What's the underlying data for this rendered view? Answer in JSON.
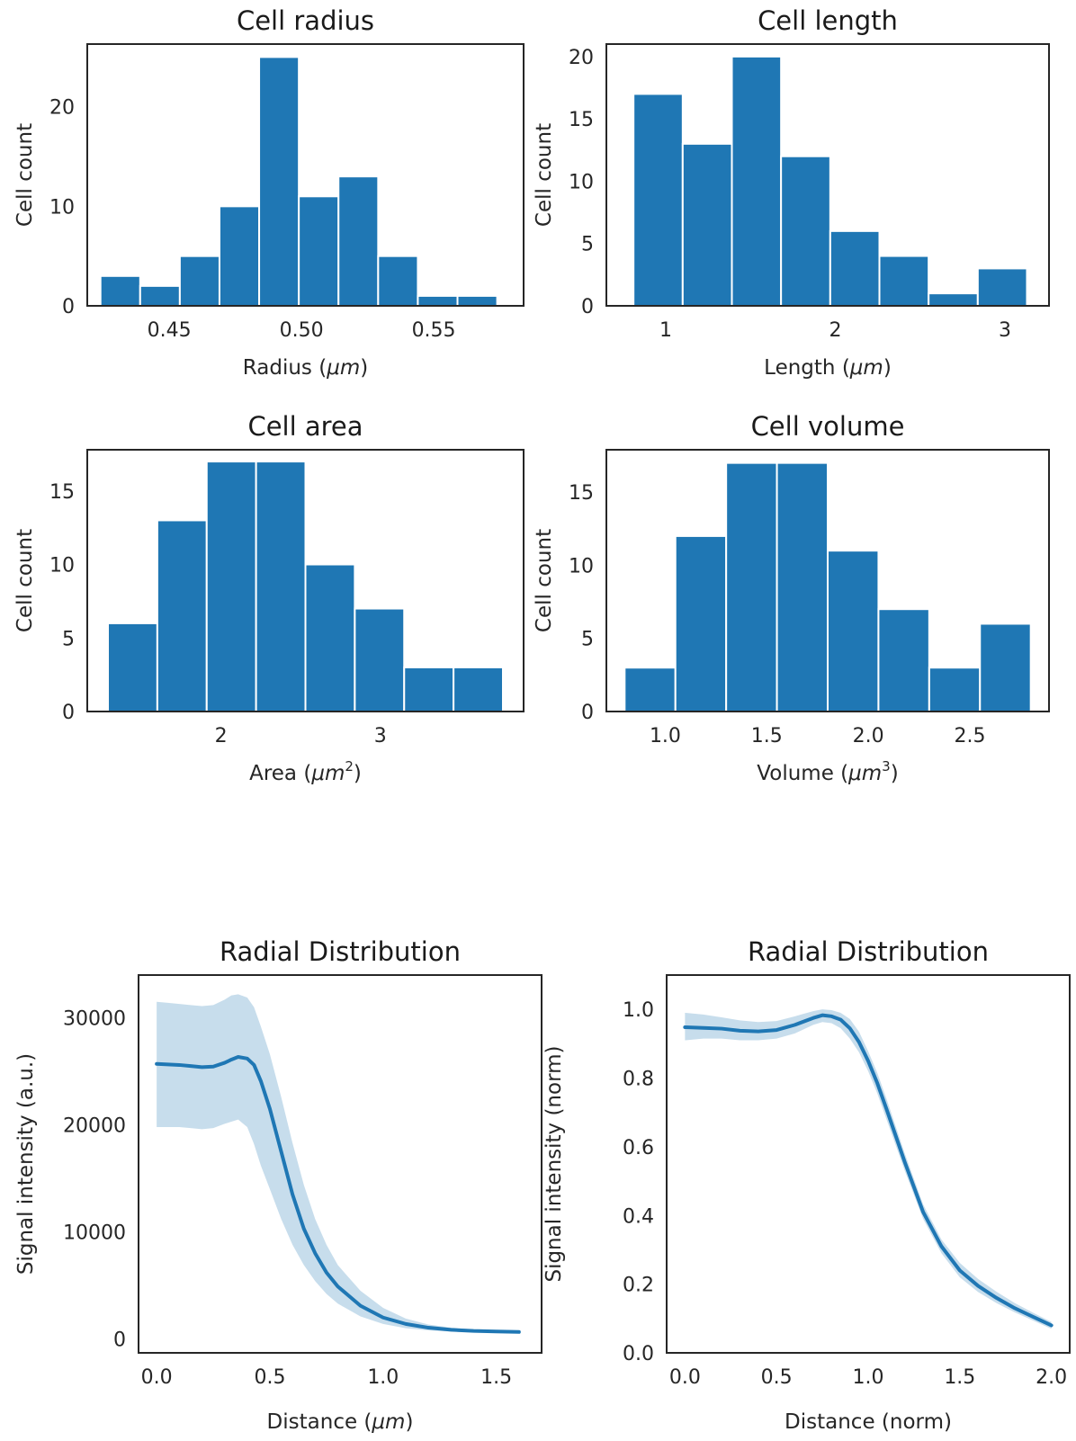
{
  "colors": {
    "bar": "#1f77b4",
    "line": "#1f77b4"
  },
  "chart_data": [
    {
      "type": "bar",
      "title": "Cell radius",
      "xlabel": "Radius (",
      "xunit": "μm",
      "xunit_sup": "",
      "xlabel_close": ")",
      "ylabel": "Cell count",
      "bins": [
        [
          0.424,
          0.439,
          3
        ],
        [
          0.439,
          0.454,
          2
        ],
        [
          0.454,
          0.469,
          5
        ],
        [
          0.469,
          0.484,
          10
        ],
        [
          0.484,
          0.499,
          25
        ],
        [
          0.499,
          0.514,
          11
        ],
        [
          0.514,
          0.529,
          13
        ],
        [
          0.529,
          0.544,
          5
        ],
        [
          0.544,
          0.559,
          1
        ],
        [
          0.559,
          0.574,
          1
        ]
      ],
      "xlim": [
        0.419,
        0.584
      ],
      "ylim": [
        0,
        26.3
      ],
      "xticks": [
        0.45,
        0.5,
        0.55
      ],
      "xtick_labels": [
        "0.45",
        "0.50",
        "0.55"
      ],
      "yticks": [
        0,
        10,
        20
      ],
      "ytick_labels": [
        "0",
        "10",
        "20"
      ]
    },
    {
      "type": "bar",
      "title": "Cell length",
      "xlabel": "Length (",
      "xunit": "μm",
      "xunit_sup": "",
      "xlabel_close": ")",
      "ylabel": "Cell count",
      "bins": [
        [
          0.81,
          1.1,
          17
        ],
        [
          1.1,
          1.39,
          13
        ],
        [
          1.39,
          1.68,
          20
        ],
        [
          1.68,
          1.97,
          12
        ],
        [
          1.97,
          2.26,
          6
        ],
        [
          2.26,
          2.55,
          4
        ],
        [
          2.55,
          2.84,
          1
        ],
        [
          2.84,
          3.13,
          3
        ]
      ],
      "xlim": [
        0.65,
        3.26
      ],
      "ylim": [
        0,
        21
      ],
      "xticks": [
        1,
        2,
        3
      ],
      "xtick_labels": [
        "1",
        "2",
        "3"
      ],
      "yticks": [
        0,
        5,
        10,
        15,
        20
      ],
      "ytick_labels": [
        "0",
        "5",
        "10",
        "15",
        "20"
      ]
    },
    {
      "type": "bar",
      "title": "Cell area",
      "xlabel": "Area (",
      "xunit": "μm",
      "xunit_sup": "2",
      "xlabel_close": ")",
      "ylabel": "Cell count",
      "bins": [
        [
          1.29,
          1.6,
          6
        ],
        [
          1.6,
          1.91,
          13
        ],
        [
          1.91,
          2.22,
          17
        ],
        [
          2.22,
          2.53,
          17
        ],
        [
          2.53,
          2.84,
          10
        ],
        [
          2.84,
          3.15,
          7
        ],
        [
          3.15,
          3.46,
          3
        ],
        [
          3.46,
          3.77,
          3
        ]
      ],
      "xlim": [
        1.16,
        3.9
      ],
      "ylim": [
        0,
        17.8
      ],
      "xticks": [
        2,
        3
      ],
      "xtick_labels": [
        "2",
        "3"
      ],
      "yticks": [
        0,
        5,
        10,
        15
      ],
      "ytick_labels": [
        "0",
        "5",
        "10",
        "15"
      ]
    },
    {
      "type": "bar",
      "title": "Cell volume",
      "xlabel": "Volume (",
      "xunit": "μm",
      "xunit_sup": "3",
      "xlabel_close": ")",
      "ylabel": "Cell count",
      "bins": [
        [
          0.8,
          1.05,
          3
        ],
        [
          1.05,
          1.3,
          12
        ],
        [
          1.3,
          1.55,
          17
        ],
        [
          1.55,
          1.8,
          17
        ],
        [
          1.8,
          2.05,
          11
        ],
        [
          2.05,
          2.3,
          7
        ],
        [
          2.3,
          2.55,
          3
        ],
        [
          2.55,
          2.8,
          6
        ]
      ],
      "xlim": [
        0.71,
        2.89
      ],
      "ylim": [
        0,
        17.9
      ],
      "xticks": [
        1.0,
        1.5,
        2.0,
        2.5
      ],
      "xtick_labels": [
        "1.0",
        "1.5",
        "2.0",
        "2.5"
      ],
      "yticks": [
        0,
        5,
        10,
        15
      ],
      "ytick_labels": [
        "0",
        "5",
        "10",
        "15"
      ]
    },
    {
      "type": "line",
      "title": "Radial Distribution",
      "xlabel": "Distance (",
      "xunit": "μm",
      "xunit_sup": "",
      "xlabel_close": ")",
      "ylabel": "Signal intensity (a.u.)",
      "x": [
        0.0,
        0.05,
        0.1,
        0.15,
        0.2,
        0.25,
        0.3,
        0.33,
        0.36,
        0.4,
        0.43,
        0.46,
        0.5,
        0.55,
        0.6,
        0.65,
        0.7,
        0.75,
        0.8,
        0.9,
        1.0,
        1.1,
        1.2,
        1.3,
        1.4,
        1.5,
        1.6
      ],
      "y": [
        25700,
        25650,
        25600,
        25500,
        25400,
        25450,
        25800,
        26100,
        26350,
        26200,
        25600,
        24100,
        21500,
        17500,
        13500,
        10300,
        8000,
        6200,
        4900,
        3100,
        2000,
        1400,
        1050,
        850,
        750,
        700,
        650
      ],
      "y_lower": [
        19800,
        19800,
        19800,
        19700,
        19600,
        19700,
        20100,
        20300,
        20500,
        19800,
        18200,
        16200,
        14000,
        11200,
        8800,
        6900,
        5400,
        4200,
        3300,
        2100,
        1400,
        1000,
        800,
        700,
        650,
        600,
        580
      ],
      "y_upper": [
        31500,
        31400,
        31300,
        31200,
        31100,
        31200,
        31700,
        32100,
        32200,
        31900,
        31000,
        29200,
        26600,
        22600,
        18300,
        14400,
        11200,
        8800,
        6900,
        4500,
        2900,
        1900,
        1350,
        1050,
        880,
        800,
        730
      ],
      "xlim": [
        -0.08,
        1.7
      ],
      "ylim": [
        -1300,
        34000
      ],
      "xticks": [
        0.0,
        0.5,
        1.0,
        1.5
      ],
      "xtick_labels": [
        "0.0",
        "0.5",
        "1.0",
        "1.5"
      ],
      "yticks": [
        0,
        10000,
        20000,
        30000
      ],
      "ytick_labels": [
        "0",
        "10000",
        "20000",
        "30000"
      ]
    },
    {
      "type": "line",
      "title": "Radial Distribution",
      "xlabel": "Distance (norm)",
      "xunit": "",
      "xunit_sup": "",
      "xlabel_close": "",
      "ylabel": "Signal intensity (norm)",
      "x": [
        0.0,
        0.1,
        0.2,
        0.3,
        0.4,
        0.5,
        0.6,
        0.7,
        0.75,
        0.8,
        0.85,
        0.9,
        0.95,
        1.0,
        1.05,
        1.1,
        1.2,
        1.3,
        1.4,
        1.5,
        1.6,
        1.7,
        1.8,
        1.9,
        2.0
      ],
      "y": [
        0.948,
        0.946,
        0.944,
        0.938,
        0.936,
        0.94,
        0.955,
        0.975,
        0.983,
        0.98,
        0.97,
        0.945,
        0.905,
        0.85,
        0.785,
        0.71,
        0.555,
        0.41,
        0.31,
        0.24,
        0.195,
        0.16,
        0.13,
        0.105,
        0.08
      ],
      "y_lower": [
        0.91,
        0.915,
        0.915,
        0.91,
        0.91,
        0.915,
        0.93,
        0.955,
        0.963,
        0.96,
        0.945,
        0.915,
        0.875,
        0.82,
        0.755,
        0.68,
        0.53,
        0.39,
        0.29,
        0.22,
        0.177,
        0.145,
        0.118,
        0.094,
        0.07
      ],
      "y_upper": [
        0.99,
        0.985,
        0.977,
        0.968,
        0.963,
        0.966,
        0.98,
        0.995,
        1.0,
        0.998,
        0.99,
        0.972,
        0.935,
        0.878,
        0.815,
        0.74,
        0.58,
        0.432,
        0.33,
        0.262,
        0.215,
        0.178,
        0.145,
        0.117,
        0.09
      ],
      "xlim": [
        -0.1,
        2.1
      ],
      "ylim": [
        0,
        1.1
      ],
      "xticks": [
        0.0,
        0.5,
        1.0,
        1.5,
        2.0
      ],
      "xtick_labels": [
        "0.0",
        "0.5",
        "1.0",
        "1.5",
        "2.0"
      ],
      "yticks": [
        0.0,
        0.2,
        0.4,
        0.6,
        0.8,
        1.0
      ],
      "ytick_labels": [
        "0.0",
        "0.2",
        "0.4",
        "0.6",
        "0.8",
        "1.0"
      ]
    }
  ]
}
